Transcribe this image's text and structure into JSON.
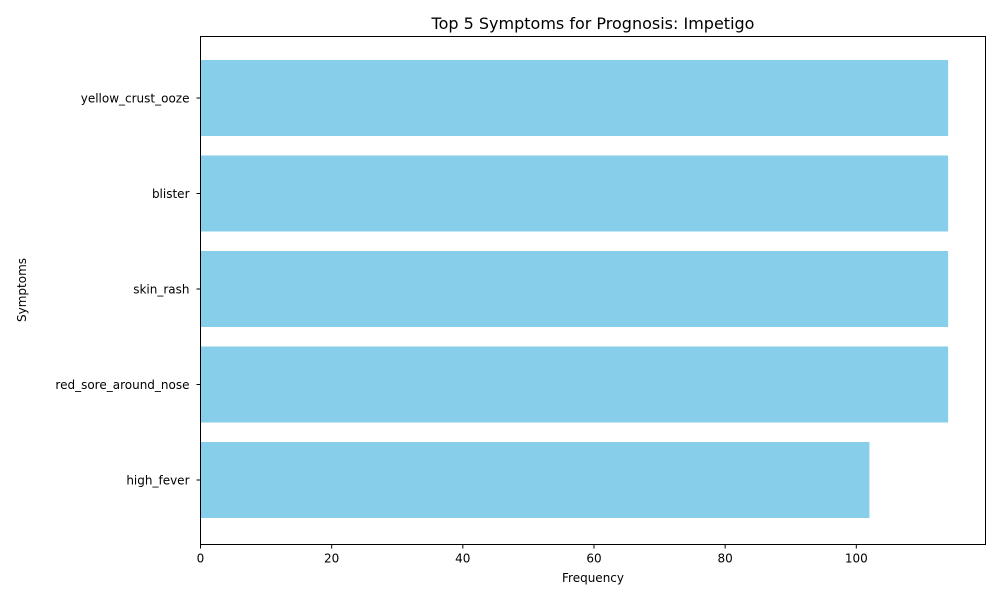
{
  "chart_data": {
    "type": "bar",
    "orientation": "horizontal",
    "title": "Top 5 Symptoms for Prognosis: Impetigo",
    "xlabel": "Frequency",
    "ylabel": "Symptoms",
    "categories": [
      "yellow_crust_ooze",
      "blister",
      "skin_rash",
      "red_sore_around_nose",
      "high_fever"
    ],
    "values": [
      114,
      114,
      114,
      114,
      102
    ],
    "xlim": [
      0,
      119.7
    ],
    "xticks": [
      0,
      20,
      40,
      60,
      80,
      100
    ],
    "bar_color": "#87ceeb",
    "grid": false,
    "legend": "none"
  }
}
